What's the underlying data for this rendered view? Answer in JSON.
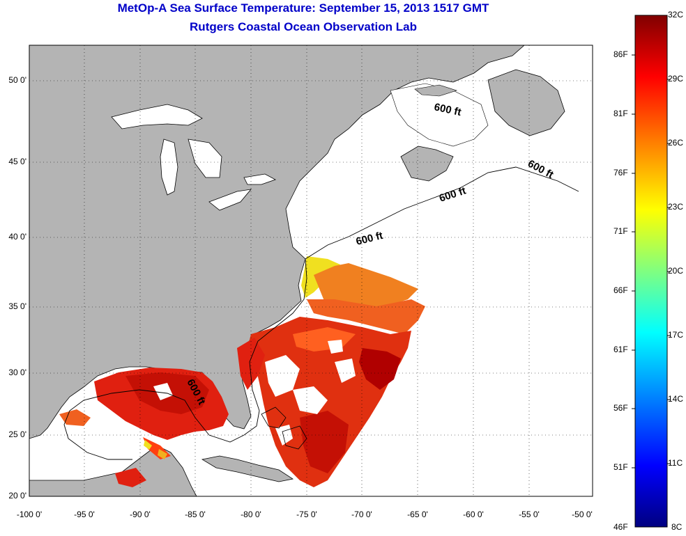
{
  "title": "MetOp-A Sea Surface Temperature:  September 15, 2013 1517 GMT",
  "subtitle": "Rutgers Coastal Ocean Observation Lab",
  "x_ticks": [
    "-100 0'",
    "-95 0'",
    "-90 0'",
    "-85 0'",
    "-80 0'",
    "-75 0'",
    "-70 0'",
    "-65 0'",
    "-60 0'",
    "-55 0'",
    "-50 0'"
  ],
  "y_ticks": [
    "50 0'",
    "45 0'",
    "40 0'",
    "35 0'",
    "30 0'",
    "25 0'",
    "20 0'"
  ],
  "depth_labels": [
    "600 ft",
    "600 ft",
    "600 ft",
    "600 ft",
    "600 ft"
  ],
  "colorbar": {
    "fahrenheit": [
      "86F",
      "81F",
      "76F",
      "71F",
      "66F",
      "61F",
      "56F",
      "51F",
      "46F"
    ],
    "celsius": [
      "32C",
      "29C",
      "26C",
      "23C",
      "20C",
      "17C",
      "14C",
      "11C",
      "8C"
    ],
    "colors": [
      "#800000",
      "#ff0000",
      "#ff8000",
      "#ffff00",
      "#80ff80",
      "#00ffff",
      "#0080ff",
      "#0000ff",
      "#000080"
    ]
  },
  "colors": {
    "land": "#b4b4b4",
    "title": "#0000c8",
    "sst_warm": "#e02010",
    "sst_hot": "#b00000",
    "sst_orange": "#f06020",
    "sst_yellow": "#f0e020"
  }
}
